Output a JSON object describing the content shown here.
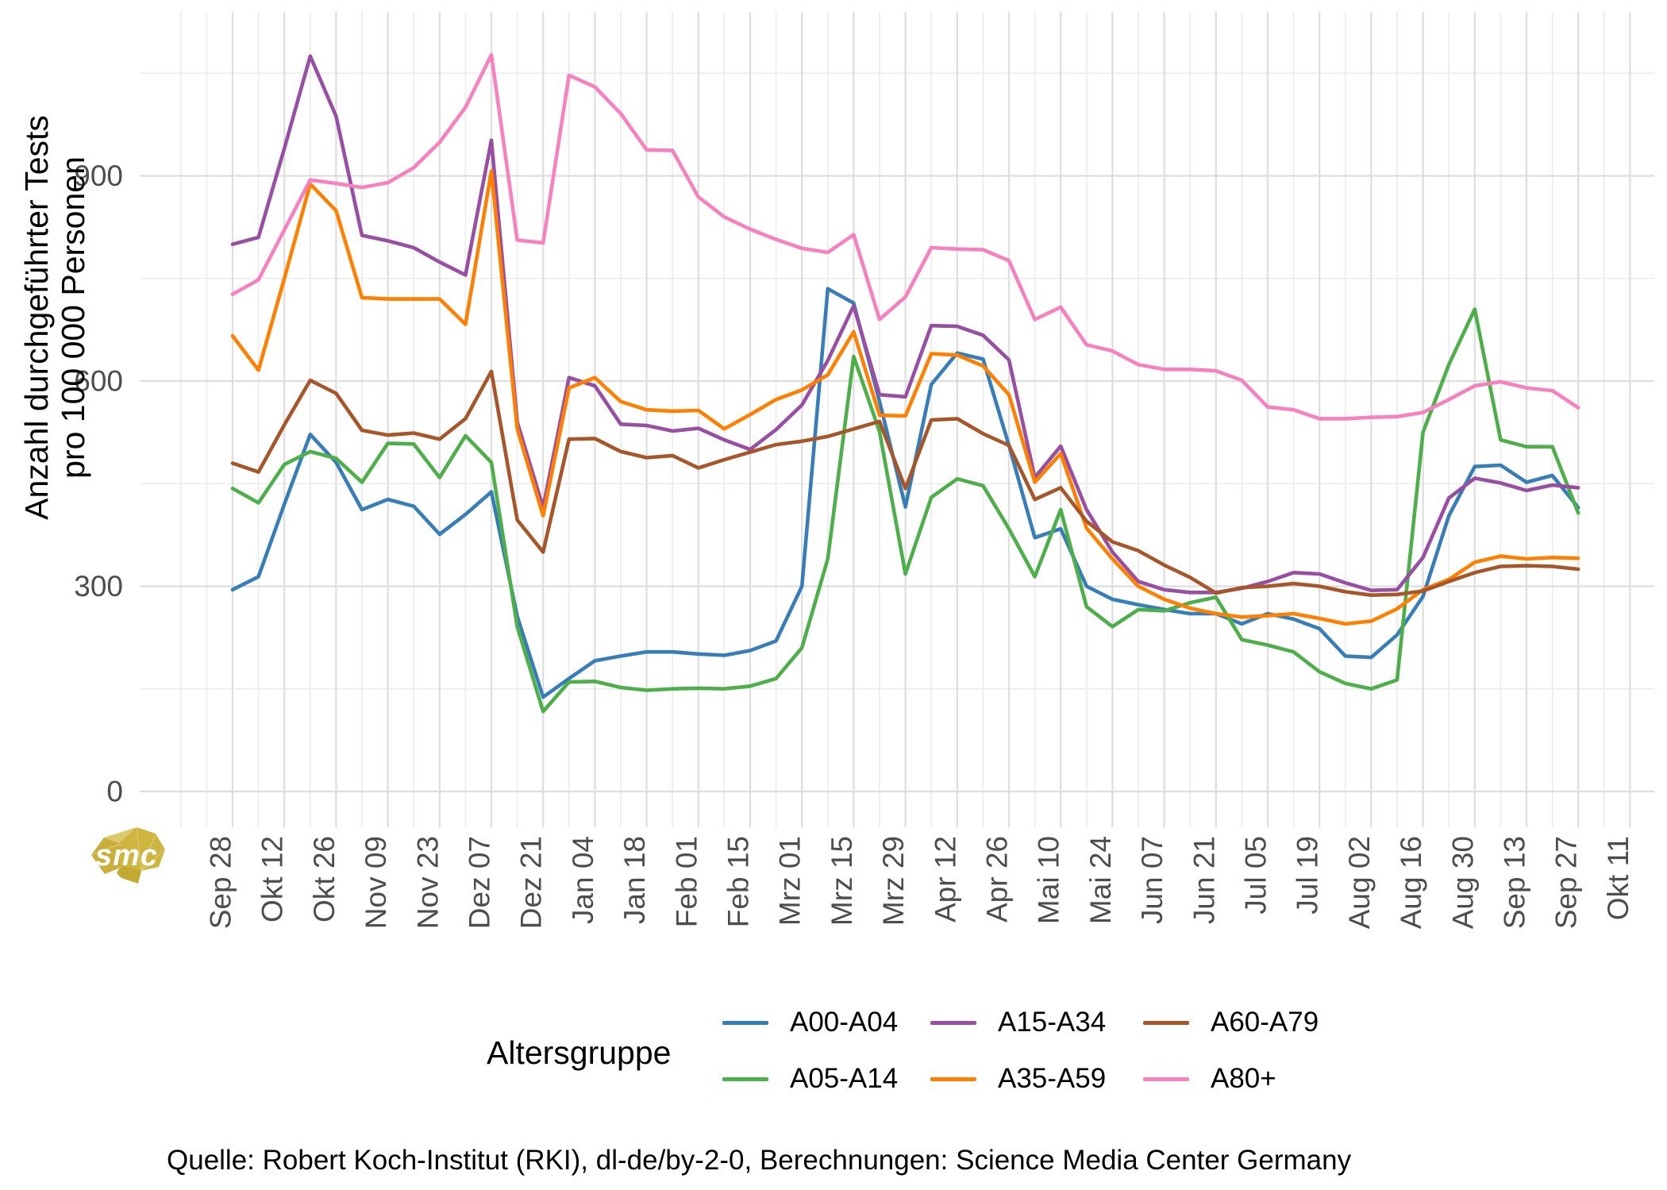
{
  "y_axis": {
    "title_line1": "Anzahl durchgeführter Tests",
    "title_line2": "pro 100 000 Personen",
    "tick_labels": [
      "0",
      "300",
      "600",
      "900"
    ],
    "tick_values": [
      0,
      300,
      600,
      900
    ],
    "minor_values": [
      150,
      450,
      750,
      1050
    ]
  },
  "x_axis": {
    "tick_labels": [
      "Sep 28",
      "Okt 12",
      "Okt 26",
      "Nov 09",
      "Nov 23",
      "Dez 07",
      "Dez 21",
      "Jan 04",
      "Jan 18",
      "Feb 01",
      "Feb 15",
      "Mrz 01",
      "Mrz 15",
      "Mrz 29",
      "Apr 12",
      "Apr 26",
      "Mai 10",
      "Mai 24",
      "Jun 07",
      "Jun 21",
      "Jul 05",
      "Jul 19",
      "Aug 02",
      "Aug 16",
      "Aug 30",
      "Sep 13",
      "Sep 27",
      "Okt 11"
    ]
  },
  "legend": {
    "title": "Altersgruppe"
  },
  "caption": "Quelle: Robert Koch-Institut (RKI), dl-de/by-2-0, Berechnungen: Science Media Center Germany",
  "logo": {
    "text": "smc",
    "color": "#c8ae3a"
  },
  "chart_data": {
    "type": "line",
    "title": "",
    "xlabel": "",
    "ylabel": "Anzahl durchgeführter Tests pro 100 000 Personen",
    "ylim": [
      0,
      1120
    ],
    "grid": true,
    "legend_position": "bottom",
    "x_weeks": [
      "2020-09-28",
      "2020-10-05",
      "2020-10-12",
      "2020-10-19",
      "2020-10-26",
      "2020-11-02",
      "2020-11-09",
      "2020-11-16",
      "2020-11-23",
      "2020-11-30",
      "2020-12-07",
      "2020-12-14",
      "2020-12-21",
      "2020-12-28",
      "2021-01-04",
      "2021-01-11",
      "2021-01-18",
      "2021-01-25",
      "2021-02-01",
      "2021-02-08",
      "2021-02-15",
      "2021-02-22",
      "2021-03-01",
      "2021-03-08",
      "2021-03-15",
      "2021-03-22",
      "2021-03-29",
      "2021-04-05",
      "2021-04-12",
      "2021-04-19",
      "2021-04-26",
      "2021-05-03",
      "2021-05-10",
      "2021-05-17",
      "2021-05-24",
      "2021-05-31",
      "2021-06-07",
      "2021-06-14",
      "2021-06-21",
      "2021-06-28",
      "2021-07-05",
      "2021-07-12",
      "2021-07-19",
      "2021-07-26",
      "2021-08-02",
      "2021-08-09",
      "2021-08-16",
      "2021-08-23",
      "2021-08-30",
      "2021-09-06",
      "2021-09-13",
      "2021-09-20",
      "2021-09-27"
    ],
    "series": [
      {
        "name": "A00-A04",
        "color": "#377eb8",
        "values": [
          295,
          314,
          420,
          522,
          481,
          412,
          427,
          417,
          376,
          405,
          438,
          256,
          138,
          165,
          191,
          198,
          204,
          204,
          201,
          199,
          206,
          220,
          300,
          735,
          714,
          570,
          416,
          595,
          641,
          632,
          506,
          371,
          384,
          300,
          281,
          273,
          266,
          260,
          260,
          245,
          260,
          252,
          238,
          198,
          196,
          229,
          285,
          403,
          475,
          477,
          452,
          462,
          415
        ]
      },
      {
        "name": "A05-A14",
        "color": "#4daf4a",
        "values": [
          443,
          422,
          478,
          497,
          487,
          452,
          509,
          508,
          459,
          520,
          481,
          241,
          117,
          160,
          161,
          152,
          148,
          150,
          151,
          150,
          154,
          165,
          210,
          340,
          636,
          526,
          318,
          430,
          457,
          447,
          384,
          314,
          412,
          270,
          241,
          266,
          264,
          276,
          284,
          222,
          214,
          204,
          175,
          158,
          150,
          163,
          525,
          624,
          705,
          514,
          504,
          504,
          407
        ]
      },
      {
        "name": "A15-A34",
        "color": "#984ea3",
        "values": [
          800,
          810,
          940,
          1075,
          987,
          813,
          805,
          795,
          774,
          755,
          952,
          540,
          415,
          605,
          593,
          537,
          535,
          527,
          531,
          514,
          500,
          529,
          565,
          630,
          710,
          580,
          577,
          681,
          680,
          667,
          631,
          459,
          505,
          412,
          350,
          307,
          295,
          291,
          291,
          297,
          307,
          320,
          318,
          305,
          294,
          295,
          342,
          429,
          458,
          451,
          440,
          448,
          444
        ]
      },
      {
        "name": "A35-A59",
        "color": "#ff7f00",
        "values": [
          666,
          616,
          750,
          888,
          849,
          722,
          720,
          720,
          720,
          683,
          907,
          530,
          403,
          590,
          605,
          570,
          558,
          556,
          557,
          530,
          551,
          573,
          587,
          609,
          672,
          550,
          549,
          640,
          638,
          622,
          580,
          452,
          494,
          385,
          340,
          300,
          281,
          268,
          260,
          255,
          257,
          260,
          253,
          245,
          249,
          267,
          295,
          310,
          335,
          344,
          340,
          342,
          341
        ]
      },
      {
        "name": "A60-A79",
        "color": "#a65628",
        "values": [
          480,
          467,
          536,
          601,
          582,
          528,
          521,
          524,
          515,
          545,
          614,
          397,
          350,
          515,
          516,
          497,
          488,
          491,
          473,
          485,
          496,
          507,
          512,
          519,
          530,
          541,
          443,
          543,
          545,
          523,
          506,
          427,
          444,
          395,
          365,
          352,
          331,
          313,
          290,
          298,
          300,
          304,
          300,
          292,
          287,
          288,
          293,
          307,
          320,
          329,
          330,
          329,
          325
        ]
      },
      {
        "name": "A80+",
        "color": "#f781bf",
        "values": [
          727,
          748,
          821,
          894,
          889,
          883,
          890,
          912,
          949,
          1000,
          1077,
          806,
          802,
          1047,
          1030,
          991,
          938,
          937,
          869,
          840,
          822,
          807,
          794,
          788,
          814,
          690,
          723,
          795,
          793,
          792,
          776,
          690,
          708,
          653,
          644,
          624,
          617,
          617,
          615,
          601,
          562,
          558,
          545,
          545,
          547,
          548,
          554,
          573,
          593,
          599,
          590,
          586,
          561
        ]
      }
    ]
  }
}
